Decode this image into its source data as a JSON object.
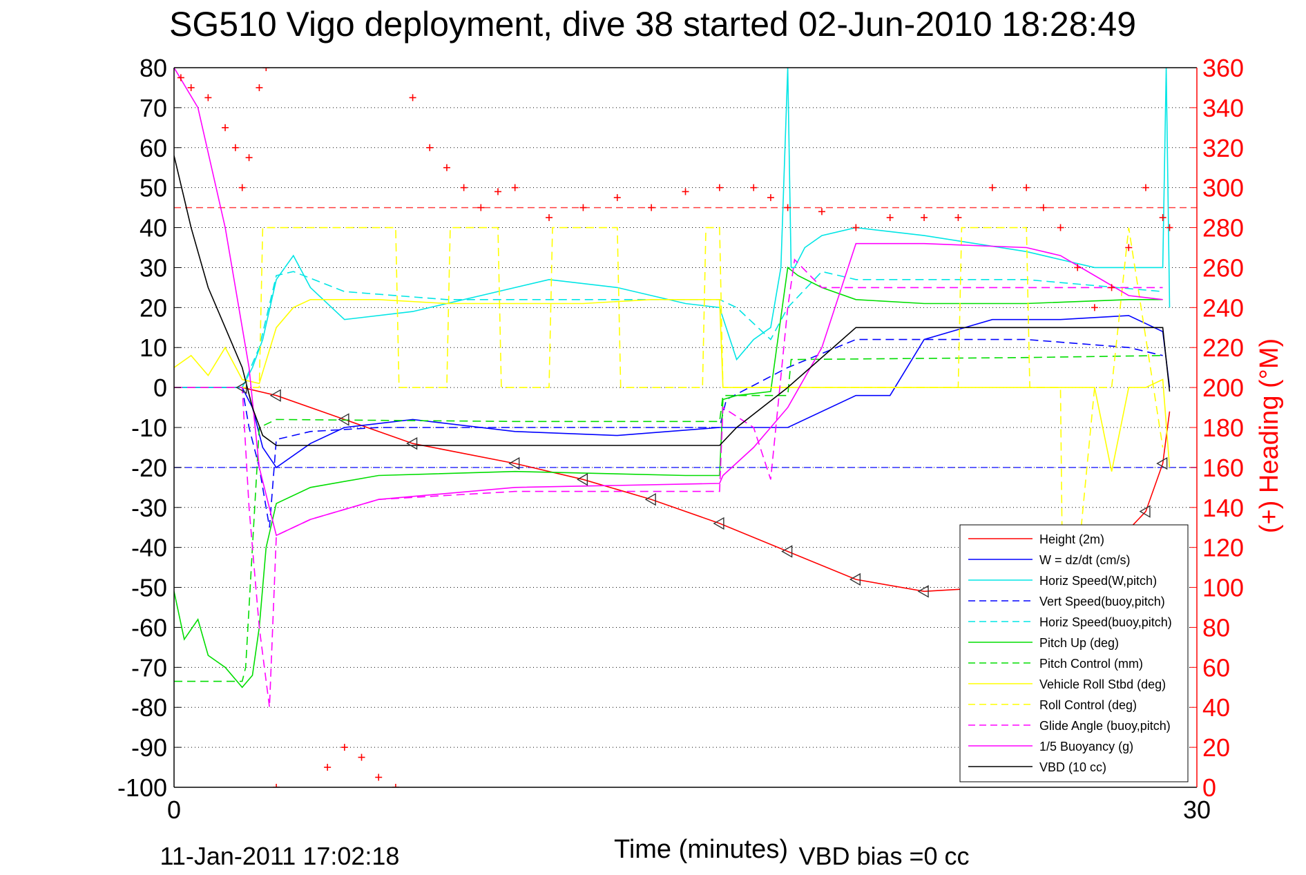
{
  "chart_data": {
    "type": "line",
    "title": "SG510 Vigo deployment, dive 38 started 02-Jun-2010 18:28:49",
    "xlabel": "Time (minutes)",
    "ylabel_right": "(+) Heading (°M)",
    "footer_left": "11-Jan-2011 17:02:18",
    "footer_right": "VBD bias =0 cc",
    "xlim": [
      0,
      30
    ],
    "ylim": [
      -100,
      80
    ],
    "ylim_right": [
      0,
      360
    ],
    "x_ticks": [
      "0",
      "30"
    ],
    "y_ticks": [
      "80",
      "70",
      "60",
      "50",
      "40",
      "30",
      "20",
      "10",
      "0",
      "-10",
      "-20",
      "-30",
      "-40",
      "-50",
      "-60",
      "-70",
      "-80",
      "-90",
      "-100"
    ],
    "y_ticks_right": [
      "360",
      "340",
      "320",
      "300",
      "280",
      "260",
      "240",
      "220",
      "200",
      "180",
      "160",
      "140",
      "120",
      "100",
      "80",
      "60",
      "40",
      "20",
      "0"
    ],
    "grid": "horizontal dotted",
    "legend_position": "lower-right",
    "reference_lines": [
      {
        "name": "heading-target",
        "axis": "right",
        "value": 290,
        "color": "#ff4040",
        "dash": true
      },
      {
        "name": "apogee-depth",
        "axis": "left",
        "value": -20,
        "color": "#3030ff",
        "dash": true
      }
    ],
    "series": [
      {
        "name": "Height (2m)",
        "color": "#ff0000",
        "dash": false,
        "axis": "left",
        "x": [
          0,
          2,
          3,
          5,
          7,
          10,
          12,
          14,
          16,
          18,
          20,
          22,
          24,
          26,
          27.5,
          28.5,
          29,
          29.2
        ],
        "y": [
          0,
          0,
          -2,
          -8,
          -14,
          -19,
          -23,
          -28,
          -34,
          -41,
          -48,
          -51,
          -50,
          -47,
          -40,
          -31,
          -19,
          -6
        ]
      },
      {
        "name": "W = dz/dt (cm/s)",
        "color": "#0000ff",
        "dash": false,
        "axis": "left",
        "x": [
          0,
          2,
          2.3,
          2.6,
          3,
          4,
          5,
          7,
          10,
          13,
          16,
          18,
          20,
          21,
          21.5,
          22,
          24,
          26,
          28,
          29,
          29.2
        ],
        "y": [
          0,
          0,
          -5,
          -15,
          -20,
          -14,
          -10,
          -8,
          -11,
          -12,
          -10,
          -10,
          -2,
          -2,
          5,
          12,
          17,
          17,
          18,
          14,
          0
        ]
      },
      {
        "name": "Horiz Speed(W,pitch)",
        "color": "#00e5e5",
        "dash": false,
        "axis": "left",
        "x": [
          0,
          2,
          2.3,
          2.6,
          3,
          3.5,
          4,
          5,
          7,
          9,
          11,
          13,
          15,
          16,
          16.5,
          17,
          17.5,
          17.8,
          18,
          18.1,
          18.2,
          18.5,
          19,
          20,
          22,
          25,
          27,
          29,
          29.1,
          29.2
        ],
        "y": [
          0,
          0,
          5,
          12,
          27,
          33,
          25,
          17,
          19,
          23,
          27,
          25,
          21,
          20,
          7,
          12,
          15,
          30,
          80,
          30,
          30,
          35,
          38,
          40,
          38,
          34,
          30,
          30,
          80,
          20
        ]
      },
      {
        "name": "Vert Speed(buoy,pitch)",
        "color": "#0000ff",
        "dash": true,
        "axis": "left",
        "x": [
          0,
          2,
          2.2,
          2.5,
          2.8,
          3,
          4,
          6,
          10,
          16,
          16.2,
          18,
          20,
          22,
          25,
          28,
          29
        ],
        "y": [
          0,
          0,
          -10,
          -20,
          -35,
          -13,
          -11,
          -10,
          -10,
          -10,
          -3,
          5,
          12,
          12,
          12,
          10,
          8
        ]
      },
      {
        "name": "Horiz Speed(buoy,pitch)",
        "color": "#00e5e5",
        "dash": true,
        "axis": "left",
        "x": [
          0,
          2,
          2.5,
          3,
          3.5,
          5,
          8,
          12,
          16,
          16.5,
          17.5,
          18,
          19,
          20,
          22,
          25,
          29
        ],
        "y": [
          0,
          0,
          10,
          28,
          29,
          24,
          22,
          22,
          22,
          20,
          12,
          20,
          29,
          27,
          27,
          27,
          24
        ]
      },
      {
        "name": "Pitch Up (deg)",
        "color": "#00dd00",
        "dash": false,
        "axis": "left",
        "x": [
          0,
          0.3,
          0.7,
          1,
          1.5,
          2,
          2.3,
          2.5,
          2.7,
          3,
          4,
          6,
          10,
          15,
          16,
          16.1,
          16.5,
          17.5,
          18,
          18.3,
          19,
          20,
          22,
          25,
          28,
          29
        ],
        "y": [
          -51,
          -63,
          -58,
          -67,
          -70,
          -75,
          -72,
          -60,
          -40,
          -29,
          -25,
          -22,
          -21,
          -22,
          -22,
          -3,
          -2,
          -1,
          30,
          28,
          25,
          22,
          21,
          21,
          22,
          22
        ]
      },
      {
        "name": "Pitch Control (mm)",
        "color": "#00dd00",
        "dash": true,
        "axis": "left",
        "x": [
          0,
          2,
          2.1,
          2.3,
          2.5,
          3,
          10,
          16,
          16.1,
          18,
          18.1,
          25,
          29
        ],
        "y": [
          -73.5,
          -73.5,
          -70,
          -40,
          -10,
          -8,
          -8.5,
          -8.5,
          -2,
          -2,
          7,
          7.5,
          8
        ]
      },
      {
        "name": "Vehicle Roll Stbd (deg)",
        "color": "#ffff00",
        "dash": false,
        "axis": "left",
        "x": [
          0,
          0.5,
          1,
          1.5,
          2,
          2.5,
          3,
          3.5,
          4,
          6,
          8,
          10,
          12,
          14,
          16,
          16.1,
          18,
          20,
          22,
          24,
          26,
          27,
          27.5,
          28,
          28.5,
          29,
          29.2
        ],
        "y": [
          5,
          8,
          3,
          10,
          2,
          1,
          15,
          20,
          22,
          22,
          21,
          21,
          21,
          22,
          22,
          0,
          0,
          0,
          0,
          0,
          0,
          0,
          -21,
          0,
          0,
          2,
          -20
        ]
      },
      {
        "name": "Roll Control (deg)",
        "color": "#ffff00",
        "dash": true,
        "axis": "left",
        "x": [
          0,
          2.5,
          2.6,
          5,
          6.5,
          6.6,
          8,
          8.1,
          9.5,
          9.6,
          11,
          11.1,
          13,
          13.1,
          15.5,
          15.6,
          16,
          16.1,
          18,
          23,
          23.1,
          25,
          25.1,
          26,
          26.1,
          27,
          27.5,
          28,
          29
        ],
        "y": [
          0,
          0,
          40,
          40,
          40,
          0,
          0,
          40,
          40,
          0,
          0,
          40,
          40,
          0,
          0,
          40,
          40,
          0,
          0,
          0,
          40,
          40,
          0,
          0,
          -80,
          0,
          0,
          40,
          -15
        ]
      },
      {
        "name": "Glide Angle (buoy,pitch)",
        "color": "#ff00ff",
        "dash": true,
        "axis": "left",
        "x": [
          0,
          2,
          2.2,
          2.5,
          2.8,
          3,
          4,
          6,
          10,
          16,
          16.1,
          17,
          17.5,
          18,
          18.2,
          19,
          22,
          25,
          28,
          29
        ],
        "y": [
          0,
          0,
          -30,
          -60,
          -80,
          -37,
          -33,
          -28,
          -26,
          -26,
          -5,
          -10,
          -23,
          20,
          32,
          25,
          25,
          25,
          25,
          25
        ]
      },
      {
        "name": "1/5 Buoyancy (g)",
        "color": "#ff00ff",
        "dash": false,
        "axis": "left",
        "x": [
          0,
          0.7,
          1.5,
          2.2,
          2.5,
          3,
          4,
          6,
          10,
          16,
          16.1,
          17,
          18,
          19,
          20,
          22,
          25,
          26,
          27,
          28,
          29
        ],
        "y": [
          80,
          70,
          40,
          5,
          -20,
          -37,
          -33,
          -28,
          -25,
          -24,
          -22,
          -15,
          -5,
          10,
          36,
          36,
          35,
          33,
          28,
          23,
          22
        ]
      },
      {
        "name": "VBD (10 cc)",
        "color": "#000000",
        "dash": false,
        "axis": "left",
        "x": [
          0,
          0.5,
          1,
          1.5,
          2,
          2.3,
          2.6,
          3,
          10,
          16,
          16.5,
          18,
          20,
          22,
          29,
          29.2
        ],
        "y": [
          58,
          40,
          25,
          15,
          5,
          -5,
          -12,
          -14.5,
          -14.5,
          -14.5,
          -10,
          0,
          15,
          15,
          15,
          -1
        ]
      }
    ],
    "heading": {
      "name": "Heading (+)",
      "color": "#ff0000",
      "axis": "right",
      "x": [
        0.2,
        0.5,
        1,
        1.5,
        1.8,
        2,
        2.2,
        2.5,
        2.7,
        3,
        4.5,
        5,
        5.5,
        6,
        6.5,
        7,
        7.5,
        8,
        8.5,
        9,
        9.5,
        10,
        11,
        12,
        13,
        14,
        15,
        16,
        17,
        17.5,
        18,
        19,
        20,
        21,
        22,
        23,
        24,
        25,
        25.5,
        26,
        26.5,
        27,
        27.5,
        28,
        28.5,
        29,
        29.2
      ],
      "y": [
        355,
        350,
        345,
        330,
        320,
        300,
        315,
        350,
        360,
        0,
        10,
        20,
        15,
        5,
        0,
        345,
        320,
        310,
        300,
        290,
        298,
        300,
        285,
        290,
        295,
        290,
        298,
        300,
        300,
        295,
        290,
        288,
        280,
        285,
        285,
        285,
        300,
        300,
        290,
        280,
        260,
        240,
        250,
        270,
        300,
        285,
        280
      ]
    }
  }
}
